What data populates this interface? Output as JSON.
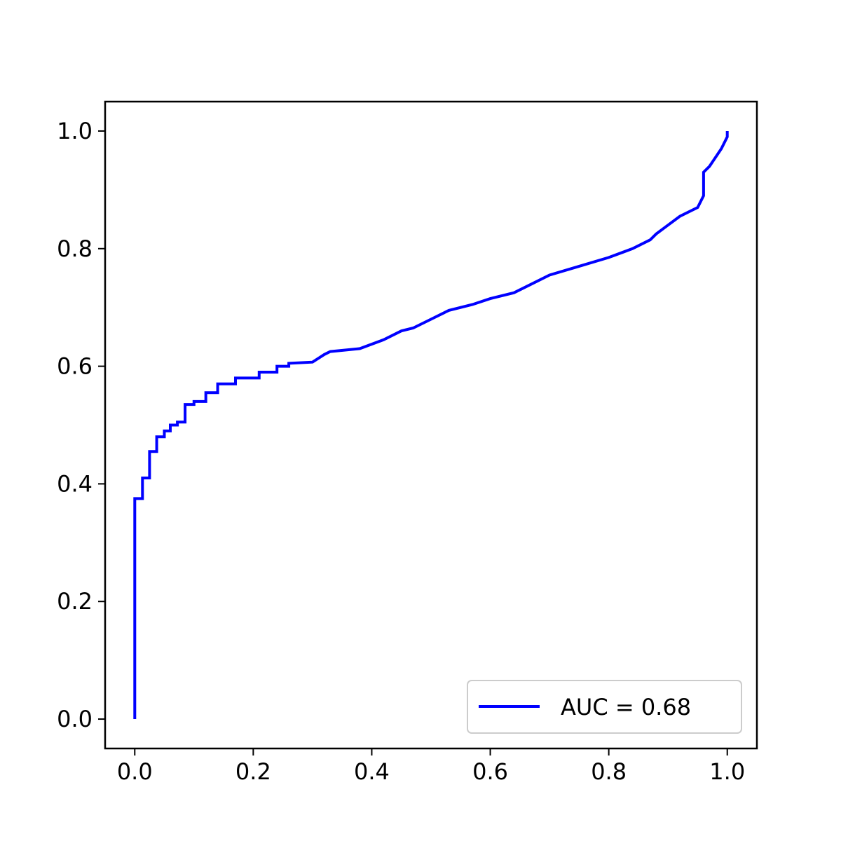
{
  "chart_data": {
    "type": "line",
    "title": "",
    "xlabel": "",
    "ylabel": "",
    "xlim": [
      -0.05,
      1.05
    ],
    "ylim": [
      -0.05,
      1.05
    ],
    "xticks": [
      0.0,
      0.2,
      0.4,
      0.6,
      0.8,
      1.0
    ],
    "yticks": [
      0.0,
      0.2,
      0.4,
      0.6,
      0.8,
      1.0
    ],
    "xtick_labels": [
      "0.0",
      "0.2",
      "0.4",
      "0.6",
      "0.8",
      "1.0"
    ],
    "ytick_labels": [
      "0.0",
      "0.2",
      "0.4",
      "0.6",
      "0.8",
      "1.0"
    ],
    "grid": false,
    "legend_position": "lower right",
    "series": [
      {
        "name": "AUC = 0.68",
        "color": "#0000ff",
        "x": [
          0.0,
          0.0,
          0.0,
          0.0,
          0.0,
          0.013,
          0.013,
          0.025,
          0.025,
          0.037,
          0.037,
          0.05,
          0.05,
          0.06,
          0.06,
          0.072,
          0.072,
          0.085,
          0.085,
          0.1,
          0.1,
          0.12,
          0.12,
          0.14,
          0.14,
          0.17,
          0.17,
          0.21,
          0.21,
          0.24,
          0.24,
          0.26,
          0.26,
          0.3,
          0.32,
          0.33,
          0.38,
          0.42,
          0.45,
          0.47,
          0.5,
          0.53,
          0.57,
          0.6,
          0.64,
          0.7,
          0.75,
          0.8,
          0.84,
          0.87,
          0.88,
          0.9,
          0.92,
          0.95,
          0.96,
          0.96,
          0.97,
          0.99,
          1.0,
          1.0
        ],
        "y": [
          0.0,
          0.2,
          0.3,
          0.35,
          0.375,
          0.375,
          0.41,
          0.41,
          0.455,
          0.455,
          0.48,
          0.48,
          0.49,
          0.49,
          0.5,
          0.5,
          0.505,
          0.505,
          0.535,
          0.535,
          0.54,
          0.54,
          0.555,
          0.555,
          0.57,
          0.57,
          0.58,
          0.58,
          0.59,
          0.59,
          0.6,
          0.6,
          0.605,
          0.607,
          0.62,
          0.625,
          0.63,
          0.645,
          0.66,
          0.665,
          0.68,
          0.695,
          0.705,
          0.715,
          0.725,
          0.755,
          0.77,
          0.785,
          0.8,
          0.815,
          0.825,
          0.84,
          0.855,
          0.87,
          0.89,
          0.93,
          0.94,
          0.97,
          0.99,
          1.0
        ]
      }
    ]
  }
}
